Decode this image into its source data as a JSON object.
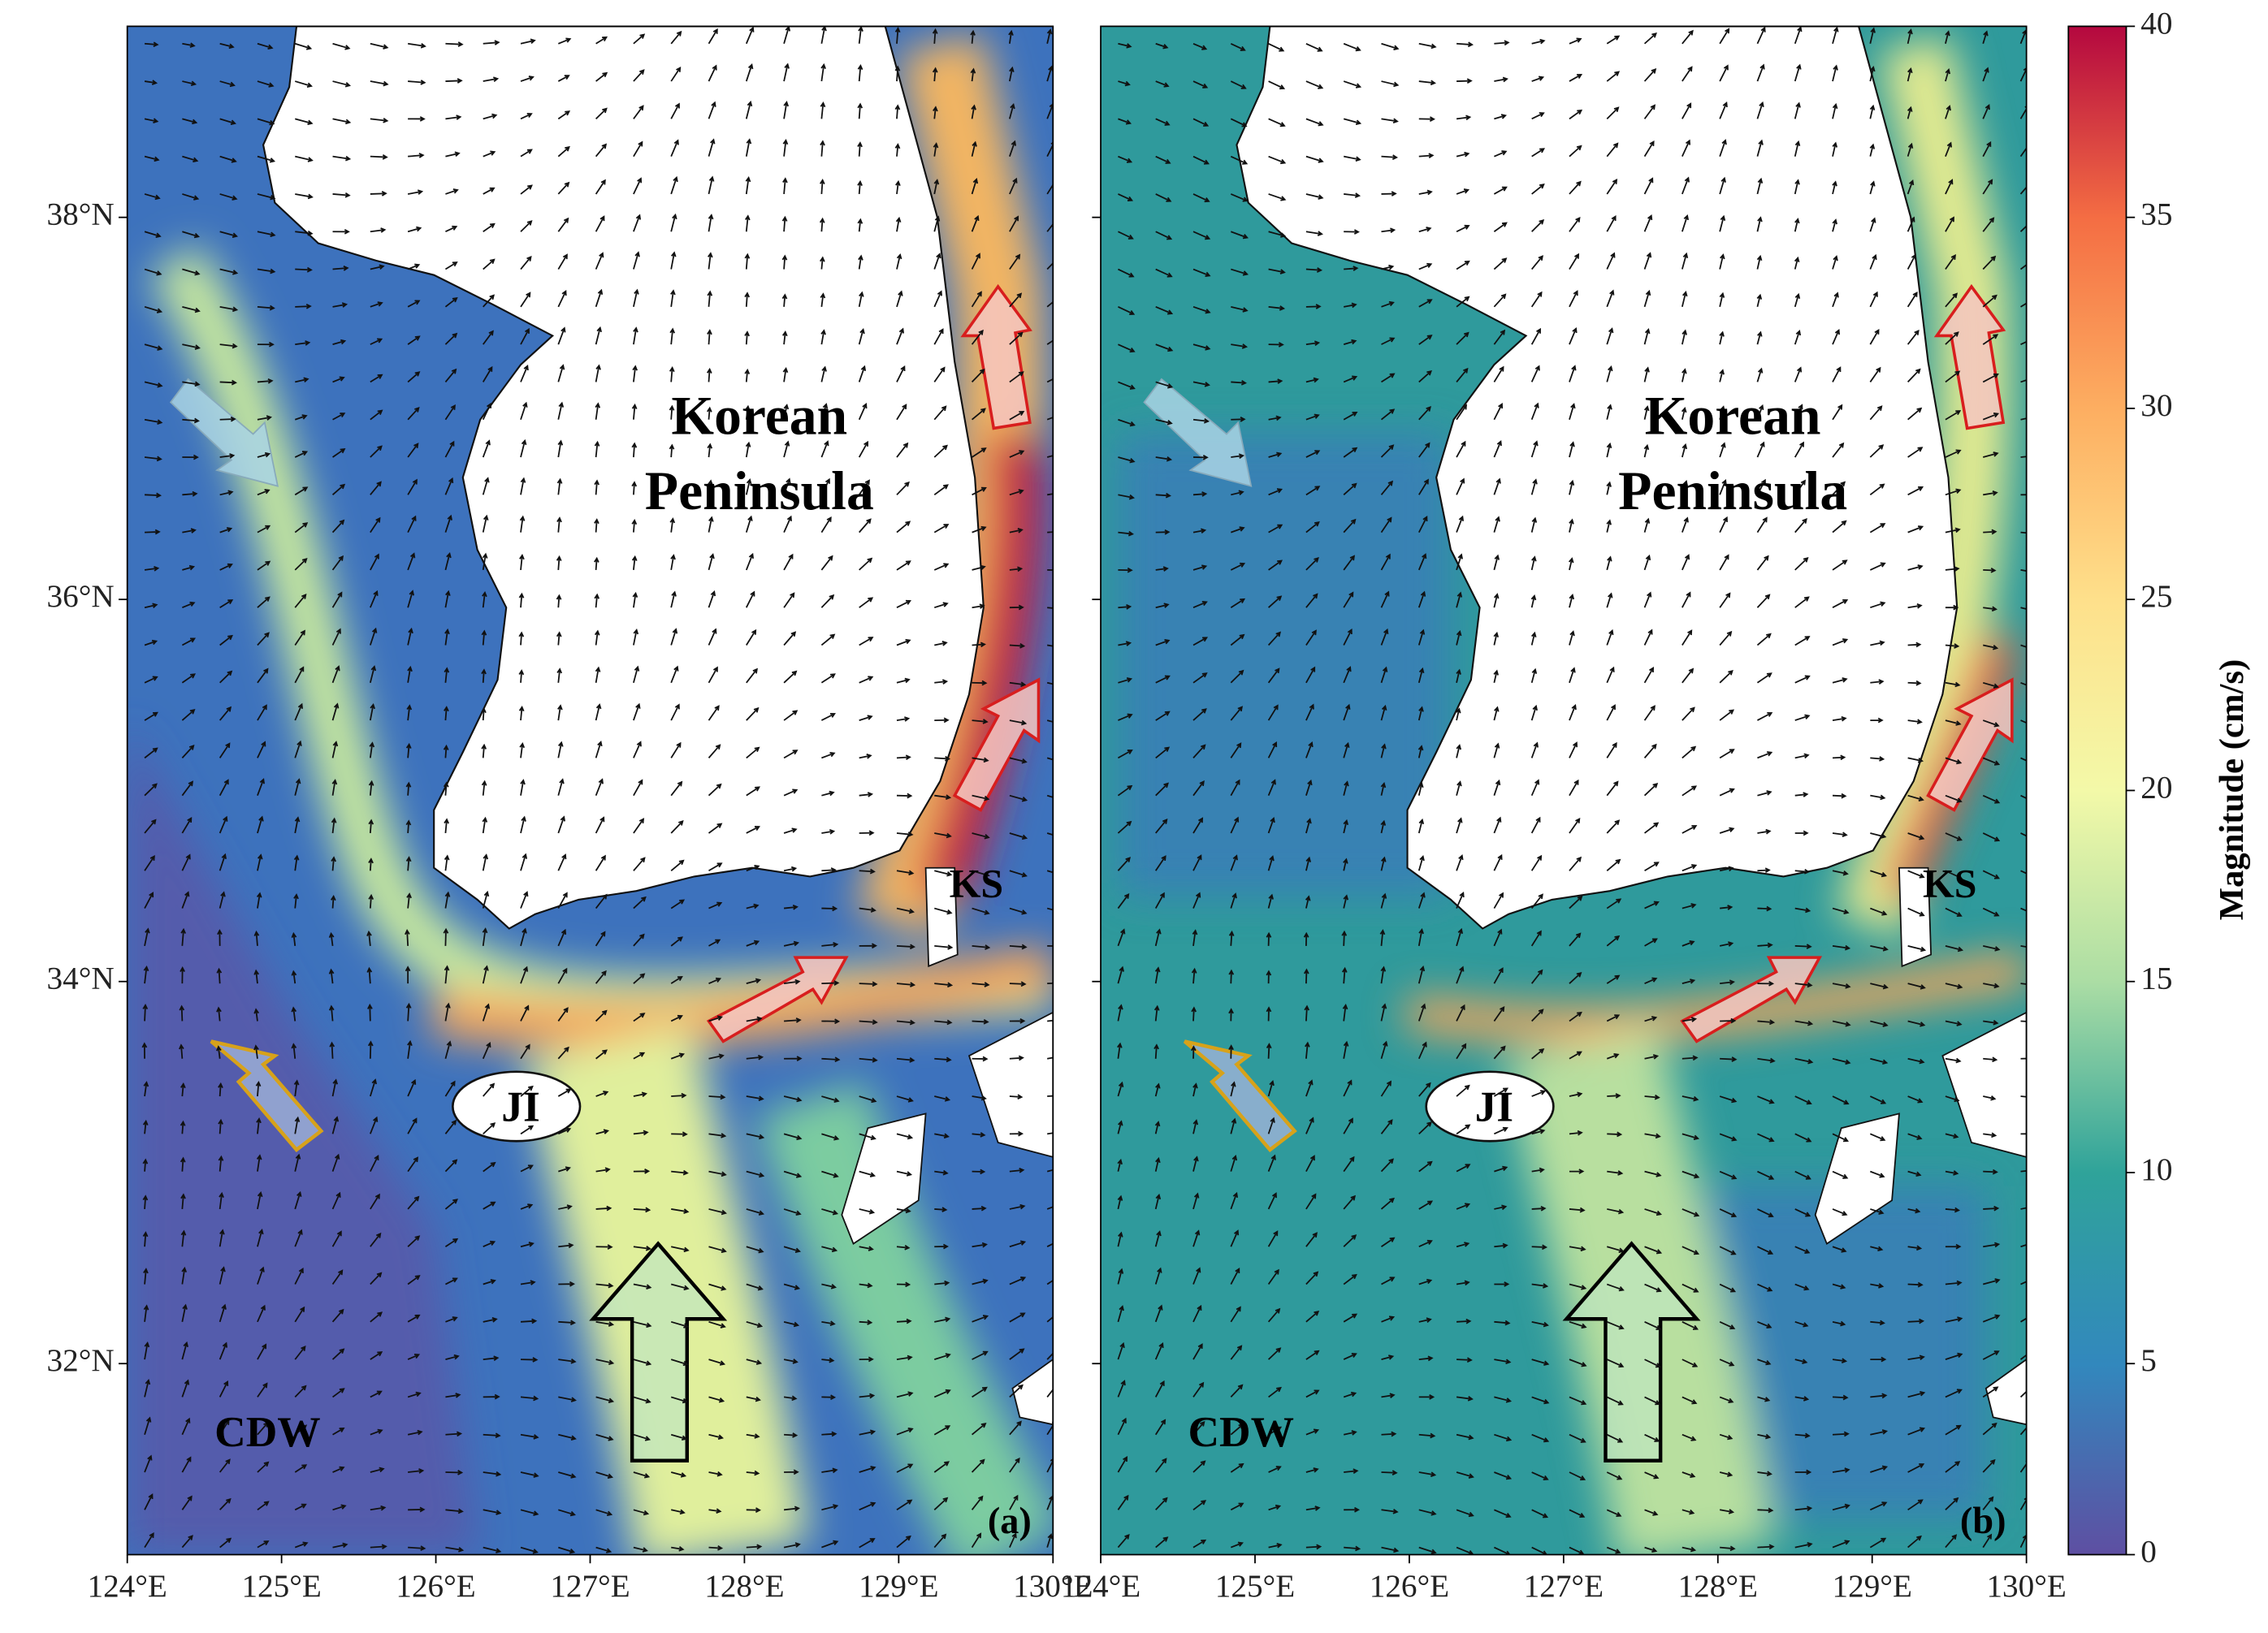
{
  "panels": [
    {
      "tag": "(a)",
      "region": [
        "Korean",
        "Peninsula"
      ],
      "strait": "KS",
      "island": "JI",
      "water_mass": "CDW"
    },
    {
      "tag": "(b)",
      "region": [
        "Korean",
        "Peninsula"
      ],
      "strait": "KS",
      "island": "JI",
      "water_mass": "CDW"
    }
  ],
  "axes": {
    "xlim": [
      124,
      130
    ],
    "ylim": [
      31,
      39
    ],
    "xticks": [
      {
        "value": 124,
        "label": "124°E"
      },
      {
        "value": 125,
        "label": "125°E"
      },
      {
        "value": 126,
        "label": "126°E"
      },
      {
        "value": 127,
        "label": "127°E"
      },
      {
        "value": 128,
        "label": "128°E"
      },
      {
        "value": 129,
        "label": "129°E"
      },
      {
        "value": 130,
        "label": "130°E"
      }
    ],
    "yticks": [
      {
        "value": 32,
        "label": "32°N"
      },
      {
        "value": 34,
        "label": "34°N"
      },
      {
        "value": 36,
        "label": "36°N"
      },
      {
        "value": 38,
        "label": "38°N"
      }
    ]
  },
  "colorbar": {
    "label": "Magnitude (cm/s)",
    "lim": [
      0,
      40
    ],
    "ticks": [
      0,
      5,
      10,
      15,
      20,
      25,
      30,
      35,
      40
    ]
  }
}
